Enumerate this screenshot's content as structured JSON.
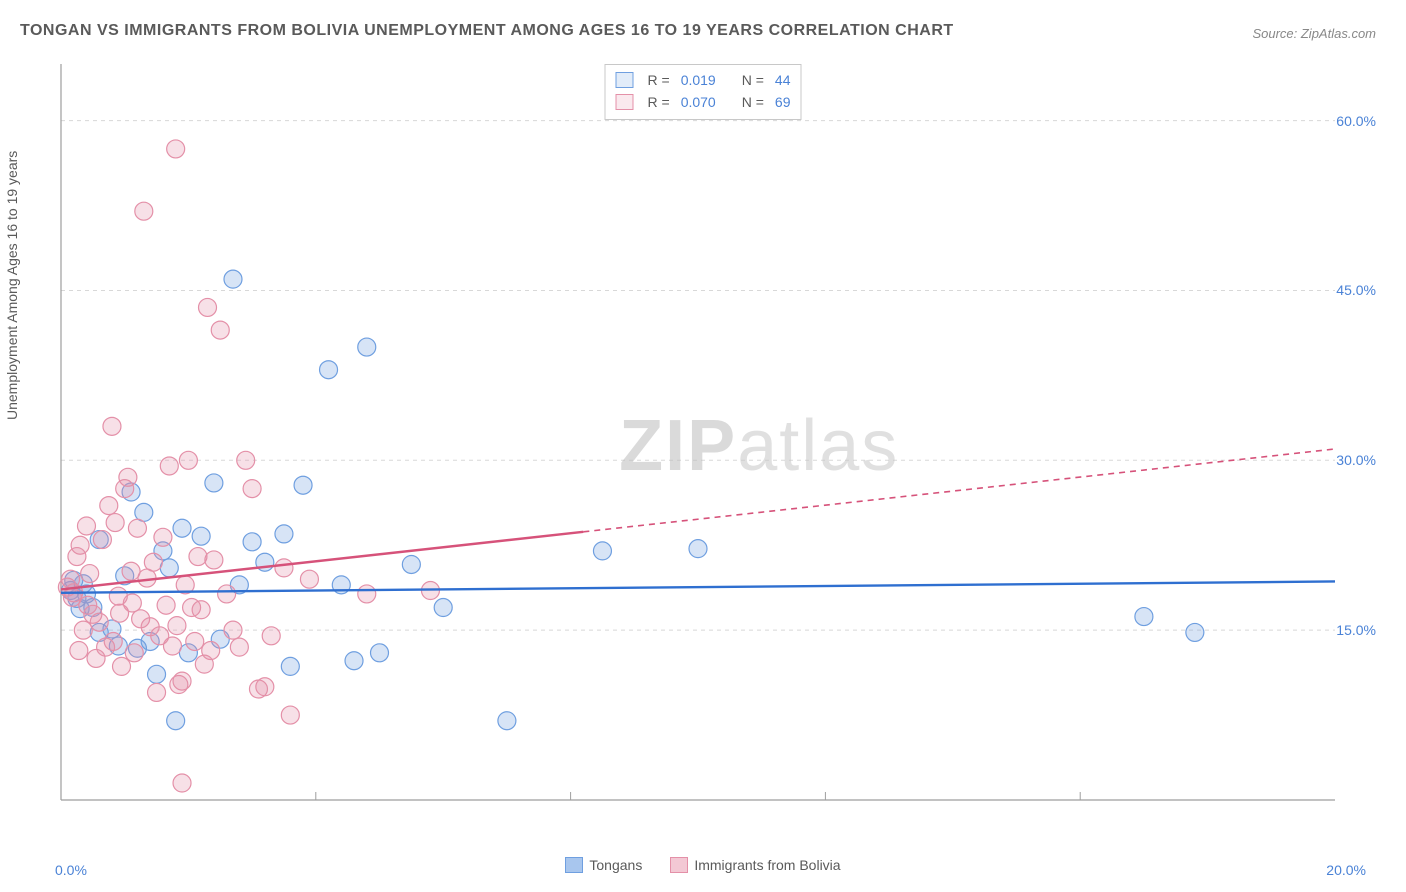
{
  "title": "TONGAN VS IMMIGRANTS FROM BOLIVIA UNEMPLOYMENT AMONG AGES 16 TO 19 YEARS CORRELATION CHART",
  "source": "Source: ZipAtlas.com",
  "ylabel": "Unemployment Among Ages 16 to 19 years",
  "xaxis": {
    "min_label": "0.0%",
    "max_label": "20.0%"
  },
  "watermark": {
    "left": "ZIP",
    "right": "atlas"
  },
  "chart": {
    "type": "scatter",
    "xlim": [
      0,
      20
    ],
    "ylim": [
      0,
      65
    ],
    "yticks": [
      {
        "v": 15,
        "label": "15.0%"
      },
      {
        "v": 30,
        "label": "30.0%"
      },
      {
        "v": 45,
        "label": "45.0%"
      },
      {
        "v": 60,
        "label": "60.0%"
      }
    ],
    "xgrid": [
      0,
      4,
      8,
      12,
      16,
      20
    ],
    "background": "#ffffff",
    "grid_color": "#d8d8d8",
    "axis_color": "#9e9e9e",
    "marker_radius": 9,
    "marker_stroke": 1.2,
    "marker_fill_opacity": 0.28,
    "series": [
      {
        "name": "Tongans",
        "color": "#6f9fe0",
        "line_color": "#2f6fd0",
        "R": "0.019",
        "N": "44",
        "trend": {
          "x1": 0,
          "y1": 18.3,
          "x2": 20,
          "y2": 19.3,
          "extend_dash_from_x": 20
        },
        "points": [
          [
            0.15,
            18.5
          ],
          [
            0.2,
            19.4
          ],
          [
            0.25,
            17.8
          ],
          [
            0.3,
            16.9
          ],
          [
            0.35,
            19.1
          ],
          [
            0.4,
            18.2
          ],
          [
            0.5,
            17.0
          ],
          [
            0.6,
            14.8
          ],
          [
            0.6,
            23.0
          ],
          [
            0.8,
            15.1
          ],
          [
            0.9,
            13.6
          ],
          [
            1.0,
            19.8
          ],
          [
            1.1,
            27.2
          ],
          [
            1.2,
            13.4
          ],
          [
            1.3,
            25.4
          ],
          [
            1.4,
            14.0
          ],
          [
            1.5,
            11.1
          ],
          [
            1.6,
            22.0
          ],
          [
            1.7,
            20.5
          ],
          [
            1.8,
            7.0
          ],
          [
            1.9,
            24.0
          ],
          [
            2.0,
            13.0
          ],
          [
            2.2,
            23.3
          ],
          [
            2.4,
            28.0
          ],
          [
            2.5,
            14.2
          ],
          [
            2.7,
            46.0
          ],
          [
            2.8,
            19.0
          ],
          [
            3.0,
            22.8
          ],
          [
            3.2,
            21.0
          ],
          [
            3.5,
            23.5
          ],
          [
            3.6,
            11.8
          ],
          [
            3.8,
            27.8
          ],
          [
            4.2,
            38.0
          ],
          [
            4.4,
            19.0
          ],
          [
            4.6,
            12.3
          ],
          [
            4.8,
            40.0
          ],
          [
            5.0,
            13.0
          ],
          [
            5.5,
            20.8
          ],
          [
            6.0,
            17.0
          ],
          [
            7.0,
            7.0
          ],
          [
            8.5,
            22.0
          ],
          [
            10.0,
            22.2
          ],
          [
            17.0,
            16.2
          ],
          [
            17.8,
            14.8
          ]
        ]
      },
      {
        "name": "Immigrants from Bolivia",
        "color": "#e490a8",
        "line_color": "#d6527a",
        "R": "0.070",
        "N": "69",
        "trend": {
          "x1": 0,
          "y1": 18.6,
          "x2": 20,
          "y2": 31.0,
          "extend_dash_from_x": 8.2
        },
        "points": [
          [
            0.1,
            18.8
          ],
          [
            0.15,
            19.5
          ],
          [
            0.18,
            17.9
          ],
          [
            0.2,
            18.3
          ],
          [
            0.25,
            21.5
          ],
          [
            0.28,
            13.2
          ],
          [
            0.3,
            22.5
          ],
          [
            0.35,
            15.0
          ],
          [
            0.4,
            24.2
          ],
          [
            0.42,
            17.2
          ],
          [
            0.45,
            20.0
          ],
          [
            0.5,
            16.4
          ],
          [
            0.55,
            12.5
          ],
          [
            0.6,
            15.7
          ],
          [
            0.65,
            23.0
          ],
          [
            0.7,
            13.5
          ],
          [
            0.75,
            26.0
          ],
          [
            0.8,
            33.0
          ],
          [
            0.82,
            14.0
          ],
          [
            0.85,
            24.5
          ],
          [
            0.9,
            18.0
          ],
          [
            0.92,
            16.5
          ],
          [
            0.95,
            11.8
          ],
          [
            1.0,
            27.5
          ],
          [
            1.05,
            28.5
          ],
          [
            1.1,
            20.2
          ],
          [
            1.12,
            17.4
          ],
          [
            1.15,
            13.0
          ],
          [
            1.2,
            24.0
          ],
          [
            1.25,
            16.0
          ],
          [
            1.3,
            52.0
          ],
          [
            1.35,
            19.6
          ],
          [
            1.4,
            15.3
          ],
          [
            1.45,
            21.0
          ],
          [
            1.5,
            9.5
          ],
          [
            1.55,
            14.5
          ],
          [
            1.6,
            23.2
          ],
          [
            1.65,
            17.2
          ],
          [
            1.7,
            29.5
          ],
          [
            1.75,
            13.6
          ],
          [
            1.8,
            57.5
          ],
          [
            1.82,
            15.4
          ],
          [
            1.85,
            10.2
          ],
          [
            1.9,
            10.5
          ],
          [
            1.95,
            19.0
          ],
          [
            2.0,
            30.0
          ],
          [
            2.05,
            17.0
          ],
          [
            2.1,
            14.0
          ],
          [
            2.15,
            21.5
          ],
          [
            2.2,
            16.8
          ],
          [
            2.25,
            12.0
          ],
          [
            2.3,
            43.5
          ],
          [
            2.35,
            13.2
          ],
          [
            2.4,
            21.2
          ],
          [
            2.5,
            41.5
          ],
          [
            2.6,
            18.2
          ],
          [
            2.7,
            15.0
          ],
          [
            2.8,
            13.5
          ],
          [
            2.9,
            30.0
          ],
          [
            3.0,
            27.5
          ],
          [
            3.1,
            9.8
          ],
          [
            3.2,
            10.0
          ],
          [
            3.3,
            14.5
          ],
          [
            3.5,
            20.5
          ],
          [
            3.6,
            7.5
          ],
          [
            3.9,
            19.5
          ],
          [
            4.8,
            18.2
          ],
          [
            5.8,
            18.5
          ],
          [
            1.9,
            1.5
          ]
        ]
      }
    ]
  },
  "bottom_legend": [
    {
      "label": "Tongans",
      "color": "#a8c6ee",
      "border": "#6f9fe0"
    },
    {
      "label": "Immigrants from Bolivia",
      "color": "#f3c8d4",
      "border": "#e490a8"
    }
  ]
}
